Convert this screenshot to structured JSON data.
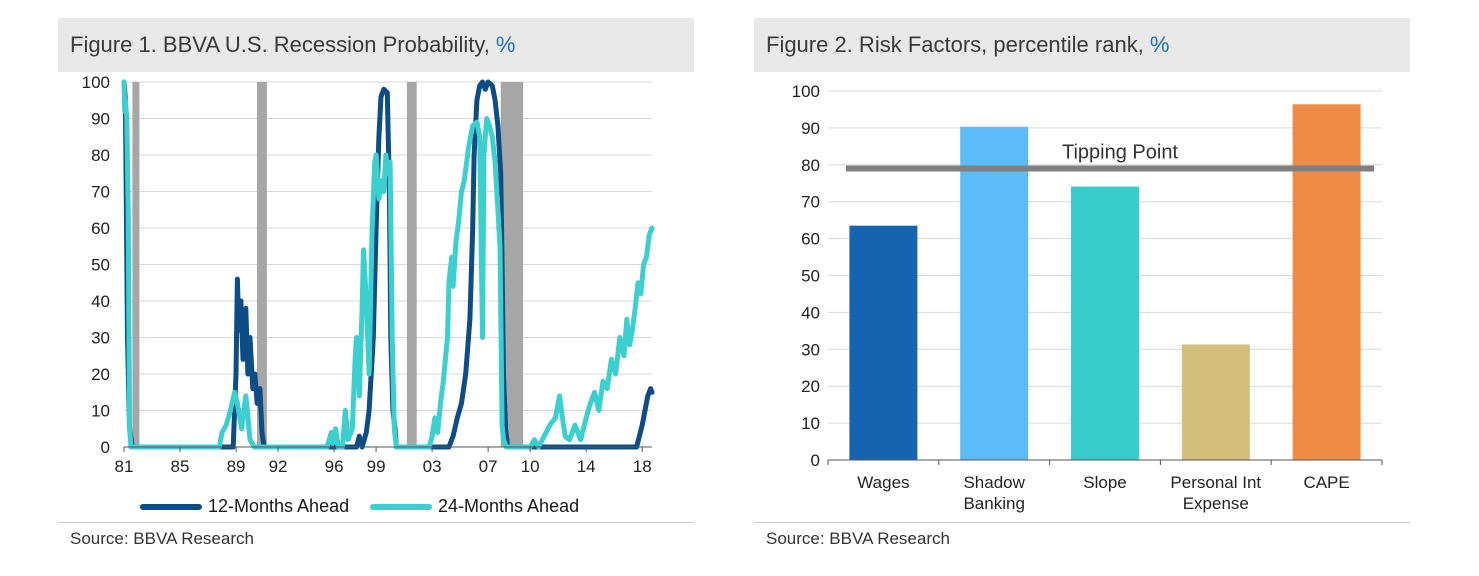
{
  "colors": {
    "series1": "#0d4d85",
    "series2": "#3ccfcf",
    "recession": "#a6a6a6",
    "grid": "#d9d9d9",
    "threshold": "#7f7f7f"
  },
  "figure1": {
    "title": "Figure 1. BBVA U.S. Recession Probability,",
    "title_unit": "%",
    "source": "Source: BBVA Research"
  },
  "figure2": {
    "title": "Figure 2. Risk Factors, percentile rank,",
    "title_unit": "%",
    "source": "Source: BBVA Research"
  },
  "chart_data": [
    {
      "type": "line",
      "title": "Figure 1. BBVA U.S. Recession Probability, %",
      "ylim": [
        0,
        100
      ],
      "yticks": [
        0,
        10,
        20,
        30,
        40,
        50,
        60,
        70,
        80,
        90,
        100
      ],
      "xlim": [
        1981.0,
        2018.7
      ],
      "xticks": [
        {
          "label": "81",
          "x": 1981
        },
        {
          "label": "85",
          "x": 1985
        },
        {
          "label": "89",
          "x": 1989
        },
        {
          "label": "92",
          "x": 1992
        },
        {
          "label": "96",
          "x": 1996
        },
        {
          "label": "99",
          "x": 1999
        },
        {
          "label": "03",
          "x": 2003
        },
        {
          "label": "07",
          "x": 2007
        },
        {
          "label": "10",
          "x": 2010
        },
        {
          "label": "14",
          "x": 2014
        },
        {
          "label": "18",
          "x": 2018
        }
      ],
      "recessions": [
        [
          1981.6,
          1982.1
        ],
        [
          1990.5,
          1991.2
        ],
        [
          2001.2,
          2001.9
        ],
        [
          2007.9,
          2009.5
        ]
      ],
      "series": [
        {
          "name": "12-Months Ahead",
          "points": [
            [
              1981.0,
              100
            ],
            [
              1981.1,
              95
            ],
            [
              1981.25,
              30
            ],
            [
              1981.4,
              5
            ],
            [
              1981.6,
              0
            ],
            [
              1982.2,
              0
            ],
            [
              1988.8,
              0
            ],
            [
              1989.0,
              20
            ],
            [
              1989.1,
              46
            ],
            [
              1989.2,
              32
            ],
            [
              1989.35,
              40
            ],
            [
              1989.5,
              24
            ],
            [
              1989.7,
              38
            ],
            [
              1989.85,
              20
            ],
            [
              1990.0,
              30
            ],
            [
              1990.2,
              16
            ],
            [
              1990.35,
              20
            ],
            [
              1990.5,
              12
            ],
            [
              1990.7,
              16
            ],
            [
              1990.85,
              4
            ],
            [
              1991.0,
              0
            ],
            [
              1991.2,
              0
            ],
            [
              1997.6,
              0
            ],
            [
              1997.8,
              3
            ],
            [
              1998.0,
              0
            ],
            [
              1998.3,
              4
            ],
            [
              1998.5,
              10
            ],
            [
              1998.8,
              30
            ],
            [
              1999.0,
              60
            ],
            [
              1999.2,
              85
            ],
            [
              1999.35,
              96
            ],
            [
              1999.55,
              98
            ],
            [
              1999.8,
              97
            ],
            [
              1999.95,
              70
            ],
            [
              2000.05,
              30
            ],
            [
              2000.2,
              10
            ],
            [
              2000.35,
              5
            ],
            [
              2000.45,
              0
            ],
            [
              2001.0,
              0
            ],
            [
              2004.2,
              0
            ],
            [
              2004.5,
              3
            ],
            [
              2004.8,
              8
            ],
            [
              2005.1,
              12
            ],
            [
              2005.4,
              20
            ],
            [
              2005.7,
              35
            ],
            [
              2005.9,
              60
            ],
            [
              2006.0,
              80
            ],
            [
              2006.2,
              95
            ],
            [
              2006.4,
              99
            ],
            [
              2006.6,
              100
            ],
            [
              2006.8,
              98
            ],
            [
              2007.0,
              100
            ],
            [
              2007.3,
              99
            ],
            [
              2007.5,
              95
            ],
            [
              2007.7,
              88
            ],
            [
              2007.9,
              75
            ],
            [
              2008.0,
              50
            ],
            [
              2008.1,
              20
            ],
            [
              2008.25,
              5
            ],
            [
              2008.4,
              0
            ],
            [
              2009.0,
              0
            ],
            [
              2017.6,
              0
            ],
            [
              2017.8,
              3
            ],
            [
              2018.0,
              6
            ],
            [
              2018.2,
              10
            ],
            [
              2018.4,
              14
            ],
            [
              2018.6,
              16
            ],
            [
              2018.7,
              15
            ]
          ]
        },
        {
          "name": "24-Months Ahead",
          "points": [
            [
              1981.0,
              100
            ],
            [
              1981.05,
              92
            ],
            [
              1981.1,
              95
            ],
            [
              1981.2,
              90
            ],
            [
              1981.3,
              65
            ],
            [
              1981.4,
              5
            ],
            [
              1981.5,
              0
            ],
            [
              1987.8,
              0
            ],
            [
              1988.0,
              4
            ],
            [
              1988.3,
              6
            ],
            [
              1988.6,
              10
            ],
            [
              1988.9,
              15
            ],
            [
              1989.1,
              12
            ],
            [
              1989.4,
              5
            ],
            [
              1989.7,
              14
            ],
            [
              1990.0,
              2
            ],
            [
              1990.3,
              0
            ],
            [
              1995.5,
              0
            ],
            [
              1995.8,
              4
            ],
            [
              1995.9,
              1
            ],
            [
              1996.1,
              5
            ],
            [
              1996.3,
              0
            ],
            [
              1996.6,
              0
            ],
            [
              1996.8,
              10
            ],
            [
              1997.0,
              2
            ],
            [
              1997.3,
              5
            ],
            [
              1997.5,
              24
            ],
            [
              1997.6,
              30
            ],
            [
              1997.8,
              14
            ],
            [
              1998.0,
              38
            ],
            [
              1998.1,
              54
            ],
            [
              1998.3,
              40
            ],
            [
              1998.5,
              20
            ],
            [
              1998.7,
              58
            ],
            [
              1998.9,
              78
            ],
            [
              1999.0,
              80
            ],
            [
              1999.2,
              68
            ],
            [
              1999.4,
              73
            ],
            [
              1999.55,
              70
            ],
            [
              1999.7,
              80
            ],
            [
              1999.85,
              75
            ],
            [
              2000.0,
              78
            ],
            [
              2000.15,
              30
            ],
            [
              2000.3,
              5
            ],
            [
              2000.45,
              0
            ],
            [
              2002.8,
              0
            ],
            [
              2003.0,
              3
            ],
            [
              2003.2,
              8
            ],
            [
              2003.4,
              4
            ],
            [
              2003.6,
              12
            ],
            [
              2003.8,
              18
            ],
            [
              2004.1,
              30
            ],
            [
              2004.2,
              45
            ],
            [
              2004.4,
              52
            ],
            [
              2004.5,
              44
            ],
            [
              2004.7,
              56
            ],
            [
              2004.9,
              62
            ],
            [
              2005.1,
              70
            ],
            [
              2005.3,
              73
            ],
            [
              2005.6,
              82
            ],
            [
              2005.9,
              88
            ],
            [
              2006.2,
              89
            ],
            [
              2006.4,
              85
            ],
            [
              2006.6,
              30
            ],
            [
              2006.7,
              80
            ],
            [
              2006.9,
              90
            ],
            [
              2007.1,
              88
            ],
            [
              2007.3,
              85
            ],
            [
              2007.5,
              78
            ],
            [
              2007.7,
              65
            ],
            [
              2007.85,
              55
            ],
            [
              2008.0,
              6
            ],
            [
              2008.1,
              2
            ],
            [
              2008.3,
              0
            ],
            [
              2009.5,
              0
            ],
            [
              2010.0,
              0
            ],
            [
              2010.3,
              2
            ],
            [
              2010.6,
              0
            ],
            [
              2011.0,
              3
            ],
            [
              2011.4,
              6
            ],
            [
              2011.8,
              8
            ],
            [
              2012.1,
              14
            ],
            [
              2012.3,
              8
            ],
            [
              2012.5,
              3
            ],
            [
              2012.8,
              2
            ],
            [
              2013.2,
              6
            ],
            [
              2013.6,
              2
            ],
            [
              2014.0,
              8
            ],
            [
              2014.3,
              12
            ],
            [
              2014.6,
              15
            ],
            [
              2014.9,
              10
            ],
            [
              2015.2,
              18
            ],
            [
              2015.5,
              16
            ],
            [
              2015.8,
              24
            ],
            [
              2016.1,
              20
            ],
            [
              2016.4,
              30
            ],
            [
              2016.7,
              25
            ],
            [
              2016.9,
              35
            ],
            [
              2017.1,
              28
            ],
            [
              2017.3,
              32
            ],
            [
              2017.5,
              38
            ],
            [
              2017.7,
              45
            ],
            [
              2017.9,
              42
            ],
            [
              2018.1,
              50
            ],
            [
              2018.3,
              52
            ],
            [
              2018.5,
              58
            ],
            [
              2018.7,
              60
            ]
          ]
        }
      ]
    },
    {
      "type": "bar",
      "title": "Figure 2. Risk Factors, percentile rank, %",
      "ylim": [
        0,
        100
      ],
      "yticks": [
        0,
        10,
        20,
        30,
        40,
        50,
        60,
        70,
        80,
        90,
        100
      ],
      "categories": [
        "Wages",
        "Shadow Banking",
        "Slope",
        "Personal Int Expense",
        "CAPE"
      ],
      "category_lines": [
        [
          "Wages"
        ],
        [
          "Shadow",
          "Banking"
        ],
        [
          "Slope"
        ],
        [
          "Personal Int",
          "Expense"
        ],
        [
          "CAPE"
        ]
      ],
      "values": [
        63.5,
        90.3,
        74.1,
        31.3,
        96.4
      ],
      "bar_colors": [
        "#1663b0",
        "#5bbcf7",
        "#38cdcd",
        "#d4be7c",
        "#f08a44"
      ],
      "threshold": {
        "label": "Tipping Point",
        "value": 79
      }
    }
  ]
}
